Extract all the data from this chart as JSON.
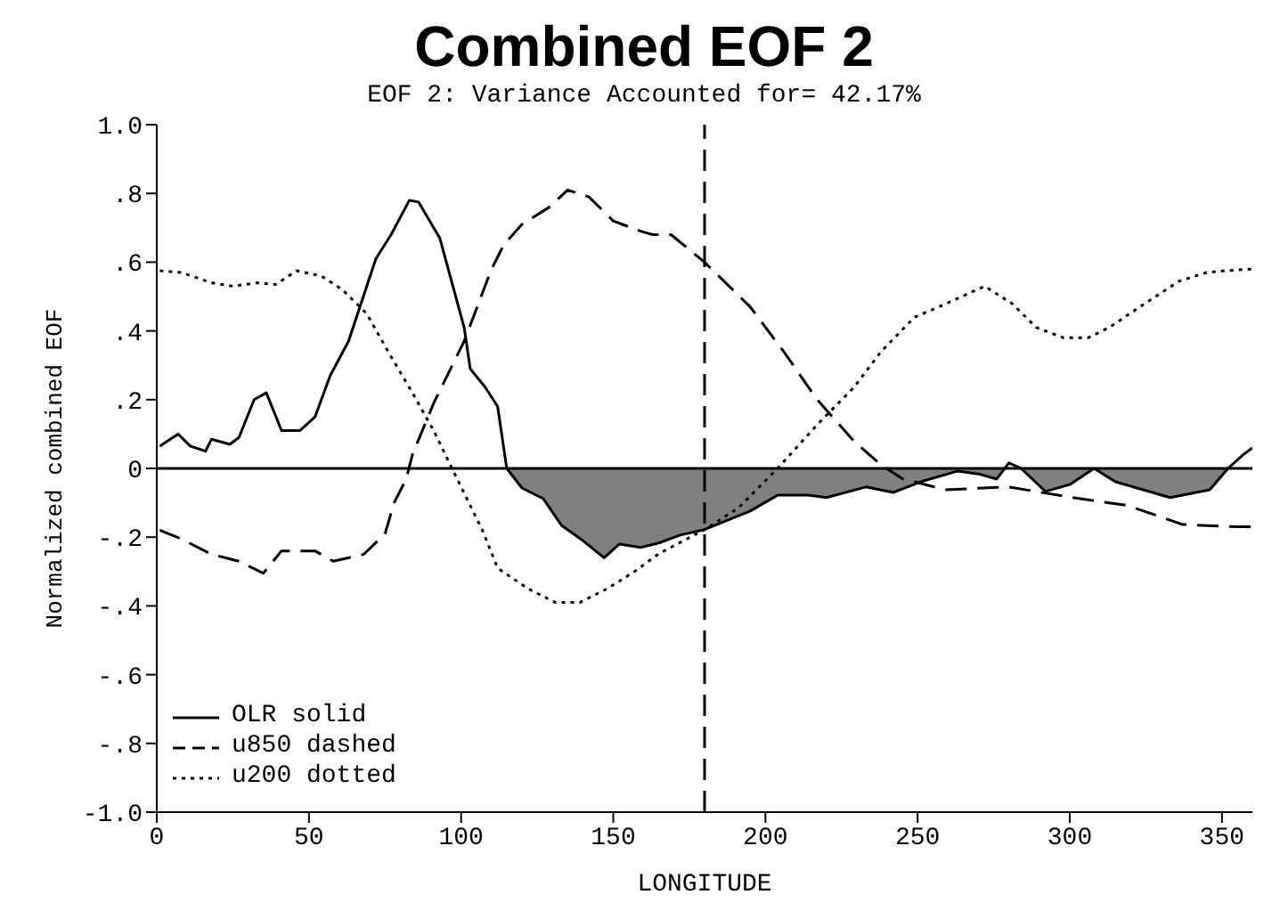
{
  "chart_data": {
    "type": "line",
    "title": "Combined EOF 2",
    "subtitle": "EOF 2: Variance Accounted for= 42.17%",
    "xlabel": "LONGITUDE",
    "ylabel": "Normalized combined EOF",
    "xlim": [
      0,
      360
    ],
    "xticks": [
      0,
      50,
      100,
      150,
      200,
      250,
      300,
      350
    ],
    "ylim": [
      -1,
      1
    ],
    "yticks": [
      {
        "value": -1,
        "label": "-1.0"
      },
      {
        "value": -0.8,
        "label": "-.8"
      },
      {
        "value": -0.6,
        "label": "-.6"
      },
      {
        "value": -0.4,
        "label": "-.4"
      },
      {
        "value": -0.2,
        "label": "-.2"
      },
      0,
      {
        "value": 0.2,
        "label": ".2"
      },
      {
        "value": 0.4,
        "label": ".4"
      },
      {
        "value": 0.6,
        "label": ".6"
      },
      {
        "value": 0.8,
        "label": ".8"
      },
      {
        "value": 1,
        "label": "1.0"
      }
    ],
    "legend": "bottom left",
    "marker": "none",
    "ref_lines": [
      {
        "axis": "y",
        "value": 0,
        "color": "#000000",
        "line_style": "solid"
      },
      {
        "axis": "x",
        "value": 180,
        "color": "#000000",
        "line_style": "dashed"
      }
    ],
    "series": [
      {
        "name": "OLR solid",
        "type": "area",
        "color": "#000000",
        "line_style": "solid",
        "x": [
          1,
          7,
          11,
          16,
          18,
          24,
          27,
          32,
          36,
          41,
          47,
          52,
          57,
          63,
          72,
          77,
          83,
          86,
          93,
          101,
          103,
          108,
          112,
          115,
          120,
          127,
          133,
          140,
          147,
          152,
          159,
          165,
          172,
          180,
          195,
          204,
          214,
          220,
          233,
          242,
          251,
          263,
          270,
          276,
          280,
          284,
          292,
          300,
          308,
          315,
          333,
          346,
          352,
          357,
          360
        ],
        "values": [
          0.065,
          0.1,
          0.065,
          0.05,
          0.085,
          0.07,
          0.09,
          0.2,
          0.22,
          0.11,
          0.11,
          0.15,
          0.27,
          0.37,
          0.61,
          0.68,
          0.78,
          0.775,
          0.67,
          0.41,
          0.29,
          0.235,
          0.18,
          0,
          -0.057,
          -0.088,
          -0.166,
          -0.21,
          -0.26,
          -0.22,
          -0.23,
          -0.217,
          -0.194,
          -0.178,
          -0.124,
          -0.078,
          -0.078,
          -0.085,
          -0.054,
          -0.07,
          -0.039,
          -0.008,
          -0.016,
          -0.031,
          0.016,
          0,
          -0.067,
          -0.047,
          0,
          -0.039,
          -0.085,
          -0.062,
          0,
          0.04,
          0.06
        ]
      },
      {
        "name": "u850 dashed",
        "color": "#000000",
        "line_style": "dashed",
        "x": [
          1,
          8,
          18,
          27,
          35,
          41,
          52,
          58,
          68,
          75,
          78,
          82,
          84,
          91,
          101,
          110,
          114,
          120,
          129,
          135,
          142,
          150,
          159,
          163,
          169,
          180,
          195,
          206,
          217,
          229,
          238,
          245,
          259,
          280,
          301,
          319,
          337,
          355,
          360
        ],
        "values": [
          -0.18,
          -0.205,
          -0.25,
          -0.27,
          -0.305,
          -0.24,
          -0.24,
          -0.27,
          -0.25,
          -0.19,
          -0.1,
          -0.03,
          0.04,
          0.19,
          0.37,
          0.58,
          0.65,
          0.71,
          0.76,
          0.81,
          0.79,
          0.72,
          0.69,
          0.68,
          0.68,
          0.6,
          0.47,
          0.34,
          0.2,
          0.08,
          0.01,
          -0.03,
          -0.062,
          -0.054,
          -0.085,
          -0.108,
          -0.163,
          -0.17,
          -0.17
        ]
      },
      {
        "name": "u200 dotted",
        "color": "#000000",
        "line_style": "dotted",
        "x": [
          1,
          8,
          18,
          25,
          33,
          39,
          46,
          54,
          61,
          69,
          76,
          84,
          91,
          97,
          107,
          112,
          122,
          131,
          139,
          148,
          157,
          165,
          180,
          191,
          204,
          217,
          229,
          238,
          249,
          257,
          272,
          281,
          289,
          298,
          306,
          313,
          323,
          336,
          345,
          351,
          360
        ],
        "values": [
          0.575,
          0.57,
          0.54,
          0.53,
          0.54,
          0.535,
          0.575,
          0.56,
          0.52,
          0.45,
          0.34,
          0.22,
          0.11,
          0,
          -0.18,
          -0.29,
          -0.35,
          -0.39,
          -0.39,
          -0.35,
          -0.3,
          -0.248,
          -0.178,
          -0.116,
          0,
          0.127,
          0.235,
          0.34,
          0.44,
          0.47,
          0.53,
          0.48,
          0.41,
          0.38,
          0.38,
          0.41,
          0.47,
          0.545,
          0.57,
          0.575,
          0.58
        ]
      }
    ]
  }
}
